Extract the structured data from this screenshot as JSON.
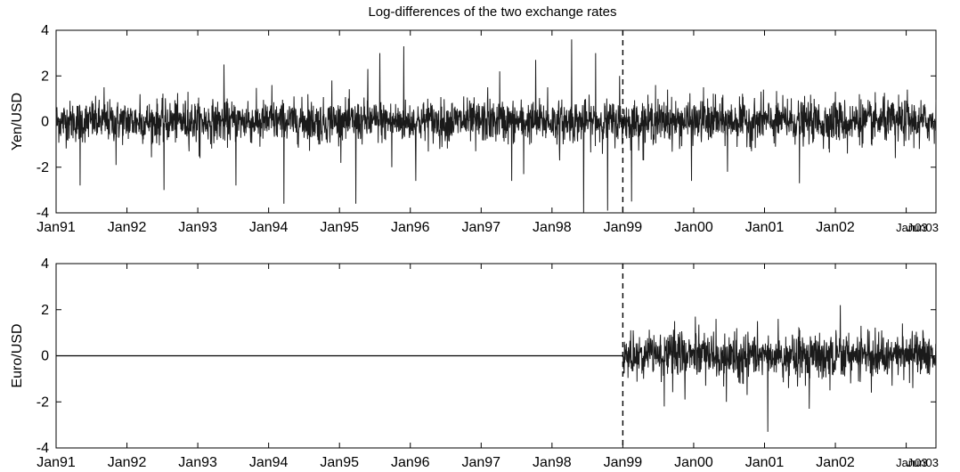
{
  "chart_data": [
    {
      "type": "line",
      "title": "Log-differences of the two exchange rates",
      "xlabel": "",
      "ylabel": "Yen/USD",
      "ylim": [
        -4,
        4
      ],
      "yticks": [
        "4",
        "2",
        "0",
        "-2",
        "-4"
      ],
      "xlim": [
        "1991-01",
        "2003-06"
      ],
      "xtick_labels": [
        "Jan91",
        "Jan92",
        "Jan93",
        "Jan94",
        "Jan95",
        "Jan96",
        "Jan97",
        "Jan98",
        "Jan99",
        "Jan00",
        "Jan01",
        "Jan02",
        "Jan03",
        "Jun03"
      ],
      "xtick_years": [
        1991,
        1992,
        1993,
        1994,
        1995,
        1996,
        1997,
        1998,
        1999,
        2000,
        2001,
        2002,
        2003,
        2003.42
      ],
      "vline": 1999,
      "series": [
        {
          "values": [
            0.2,
            -2.8,
            0.9,
            1.5,
            -1.9,
            0.6,
            1.2,
            -1.0,
            -3.0,
            0.8,
            1.3,
            -1.6,
            0.7,
            2.5,
            -2.8,
            0.9,
            -1.1,
            1.6,
            -3.6,
            0.5,
            1.2,
            -1.0,
            1.8,
            0.4,
            -3.6,
            2.3,
            3.0,
            -2.0,
            3.3,
            -2.6,
            1.0,
            -1.2,
            0.8,
            1.1,
            -1.3,
            1.5,
            2.2,
            -2.6,
            -2.3,
            2.7,
            1.5,
            -1.7,
            3.6,
            -4.0,
            3.0,
            -3.9,
            2.0,
            -3.5,
            -1.7,
            1.6,
            1.4,
            -1.2,
            -2.6,
            1.5,
            1.2,
            -2.2,
            1.1,
            -1.3,
            1.4,
            -1.1,
            1.0,
            -2.7,
            0.8,
            -1.2,
            1.3,
            -1.4,
            1.2,
            -1.0,
            1.1,
            -1.6,
            1.4,
            -1.2
          ]
        }
      ]
    },
    {
      "type": "line",
      "title": "",
      "xlabel": "",
      "ylabel": "Euro/USD",
      "ylim": [
        -4,
        4
      ],
      "yticks": [
        "4",
        "2",
        "0",
        "-2",
        "-4"
      ],
      "xlim": [
        "1991-01",
        "2003-06"
      ],
      "xtick_labels": [
        "Jan91",
        "Jan92",
        "Jan93",
        "Jan94",
        "Jan95",
        "Jan96",
        "Jan97",
        "Jan98",
        "Jan99",
        "Jan00",
        "Jan01",
        "Jan02",
        "Jan03",
        "Jun03"
      ],
      "xtick_years": [
        1991,
        1992,
        1993,
        1994,
        1995,
        1996,
        1997,
        1998,
        1999,
        2000,
        2001,
        2002,
        2003,
        2003.42
      ],
      "vline": 1999,
      "series_start": 1999,
      "series": [
        {
          "values": [
            1.1,
            -1.0,
            0.9,
            -2.2,
            1.5,
            -1.9,
            1.7,
            -1.3,
            1.6,
            -2.0,
            1.2,
            -1.7,
            1.5,
            -3.3,
            1.6,
            -1.4,
            1.2,
            -2.3,
            1.0,
            -1.5,
            2.2,
            -1.2,
            1.3,
            -1.6,
            1.1,
            -1.3,
            1.4,
            -1.4,
            1.0
          ]
        }
      ]
    }
  ]
}
